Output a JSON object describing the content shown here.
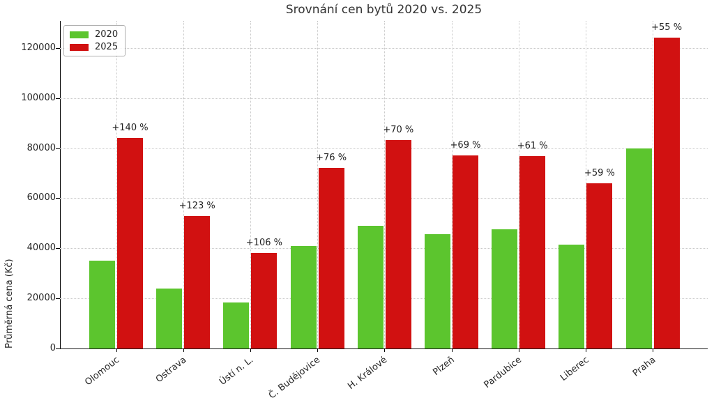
{
  "chart_data": {
    "type": "bar",
    "title": "Srovnání cen bytů 2020 vs. 2025",
    "xlabel": "",
    "ylabel": "Průměrná cena (Kč)",
    "categories": [
      "Olomouc",
      "Ostrava",
      "Ústí n. L.",
      "Č. Budějovice",
      "H. Králové",
      "Plzeň",
      "Pardubice",
      "Liberec",
      "Praha"
    ],
    "series": [
      {
        "name": "2020",
        "color": "#5cc52e",
        "values": [
          35000,
          23800,
          18500,
          41000,
          49000,
          45700,
          47700,
          41500,
          80000
        ]
      },
      {
        "name": "2025",
        "color": "#d11111",
        "values": [
          84000,
          53000,
          38100,
          72000,
          83300,
          77200,
          76800,
          66000,
          124000
        ]
      }
    ],
    "annotations": [
      "+140 %",
      "+123 %",
      "+106 %",
      "+76 %",
      "+70 %",
      "+69 %",
      "+61 %",
      "+59 %",
      "+55 %"
    ],
    "ylim": [
      0,
      130800
    ],
    "yticks": [
      0,
      20000,
      40000,
      60000,
      80000,
      100000,
      120000
    ],
    "grid": true,
    "grid_style": "dotted",
    "legend_position": "upper left",
    "colors": {
      "bar_2020": "#5cc52e",
      "bar_2025": "#d11111",
      "grid": "#c9c9c9",
      "text": "#262626"
    }
  }
}
